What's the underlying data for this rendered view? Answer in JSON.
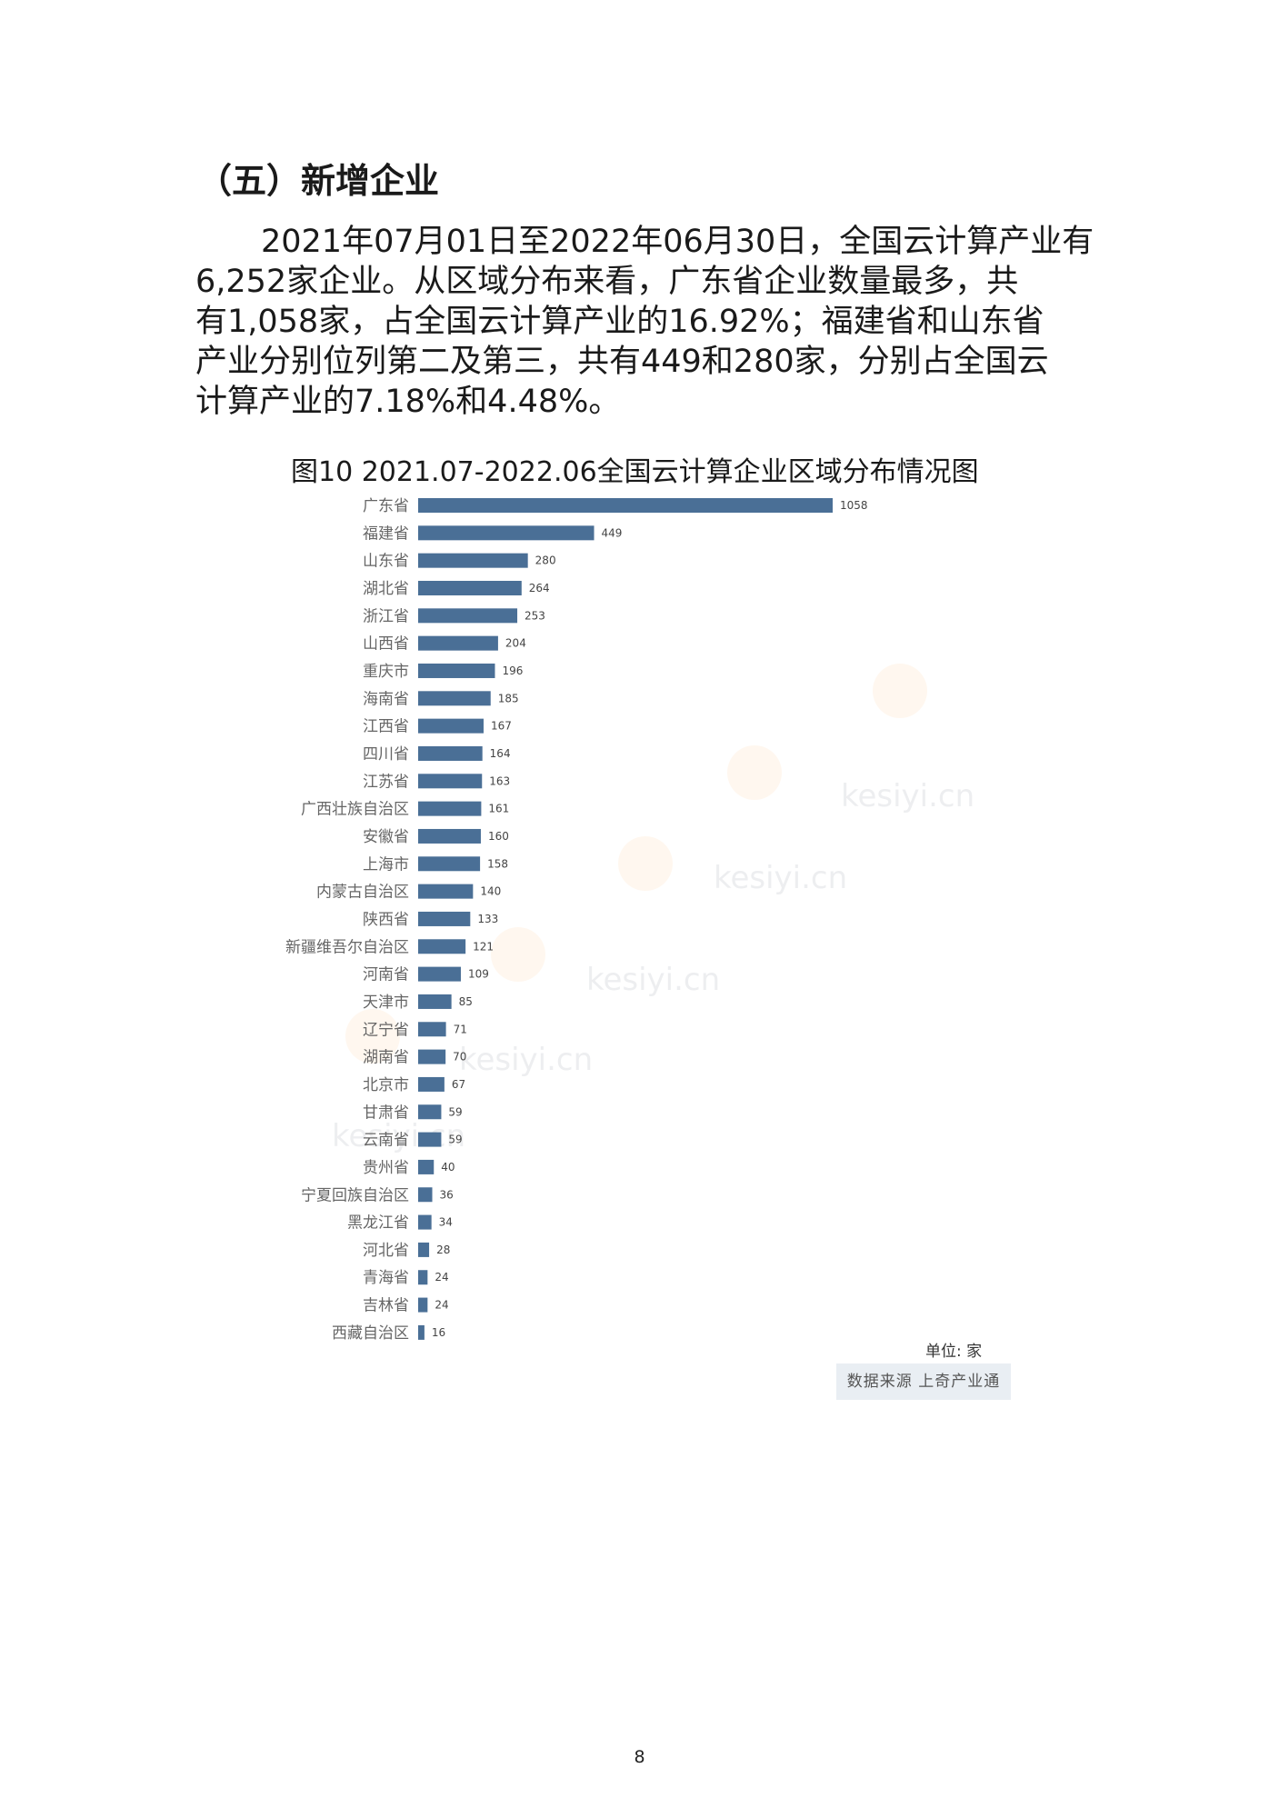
{
  "section": {
    "heading": "（五）新增企业"
  },
  "paragraph": {
    "lines": [
      "2021年07月01日至2022年06月30日，全国云计算产业有",
      "6,252家企业。从区域分布来看，广东省企业数量最多，共",
      "有1,058家，占全国云计算产业的16.92%；福建省和山东省",
      "产业分别位列第二及第三，共有449和280家，分别占全国云",
      "计算产业的7.18%和4.48%。"
    ]
  },
  "figure": {
    "title": "图10 2021.07-2022.06全国云计算企业区域分布情况图",
    "unit_label": "单位: 家",
    "source_label": "数据来源 上奇产业通"
  },
  "watermark": {
    "text": "kesiyi.cn"
  },
  "page": {
    "number": "8"
  },
  "chart_data": {
    "type": "bar",
    "orientation": "horizontal",
    "bar_color": "#4a6f96",
    "categories": [
      "广东省",
      "福建省",
      "山东省",
      "湖北省",
      "浙江省",
      "山西省",
      "重庆市",
      "海南省",
      "江西省",
      "四川省",
      "江苏省",
      "广西壮族自治区",
      "安徽省",
      "上海市",
      "内蒙古自治区",
      "陕西省",
      "新疆维吾尔自治区",
      "河南省",
      "天津市",
      "辽宁省",
      "湖南省",
      "北京市",
      "甘肃省",
      "云南省",
      "贵州省",
      "宁夏回族自治区",
      "黑龙江省",
      "河北省",
      "青海省",
      "吉林省",
      "西藏自治区"
    ],
    "values": [
      1058,
      449,
      280,
      264,
      253,
      204,
      196,
      185,
      167,
      164,
      163,
      161,
      160,
      158,
      140,
      133,
      121,
      109,
      85,
      71,
      70,
      67,
      59,
      59,
      40,
      36,
      34,
      28,
      24,
      24,
      16
    ],
    "xlim": [
      0,
      1058
    ],
    "grid": false,
    "data_labels": true
  }
}
